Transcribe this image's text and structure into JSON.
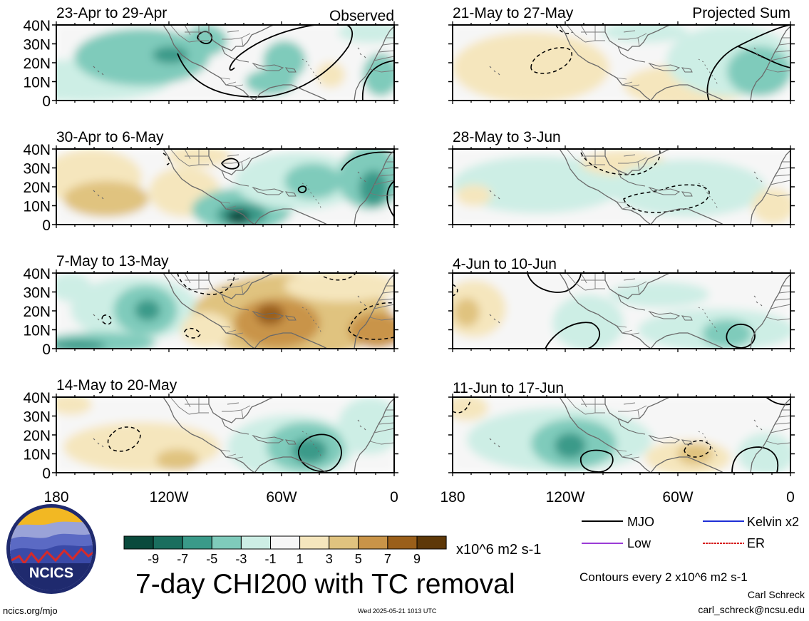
{
  "panels_left": [
    {
      "date_label": "23-Apr to 29-Apr",
      "corner_label": "Observed"
    },
    {
      "date_label": "30-Apr to 6-May",
      "corner_label": ""
    },
    {
      "date_label": "7-May to 13-May",
      "corner_label": ""
    },
    {
      "date_label": "14-May to 20-May",
      "corner_label": ""
    }
  ],
  "panels_right": [
    {
      "date_label": "21-May to 27-May",
      "corner_label": "Projected Sum"
    },
    {
      "date_label": "28-May to 3-Jun",
      "corner_label": ""
    },
    {
      "date_label": "4-Jun to 10-Jun",
      "corner_label": ""
    },
    {
      "date_label": "11-Jun to 17-Jun",
      "corner_label": ""
    }
  ],
  "lat_ticks": [
    "40N",
    "30N",
    "20N",
    "10N",
    "0"
  ],
  "lon_ticks": [
    "180",
    "120W",
    "60W",
    "0"
  ],
  "colorbar": {
    "ticks": [
      "-9",
      "-7",
      "-5",
      "-3",
      "-1",
      "1",
      "3",
      "5",
      "7",
      "9"
    ],
    "colors": [
      "#0a4a3c",
      "#1a6e5e",
      "#3a9a89",
      "#7fcbbb",
      "#cdeee5",
      "#f6f6f6",
      "#f5e6bd",
      "#e0c37f",
      "#c99448",
      "#9a5f1a",
      "#5e3808"
    ],
    "units": "x10^6 m2 s-1"
  },
  "legend": {
    "items": [
      {
        "label": "MJO",
        "color": "#000000"
      },
      {
        "label": "Kelvin x2",
        "color": "#1e2fd6"
      },
      {
        "label": "Low",
        "color": "#9b3cd6"
      },
      {
        "label": "ER",
        "color": "#d62020"
      }
    ],
    "contour_note": "Contours every 2 x10^6 m2 s-1"
  },
  "title": "7-day CHI200 with TC removal",
  "logo_text": "NCICS",
  "site": "ncics.org/mjo",
  "timestamp": "Wed 2025-05-21 1013 UTC",
  "author": "Carl Schreck",
  "email": "carl_schreck@ncsu.edu"
}
